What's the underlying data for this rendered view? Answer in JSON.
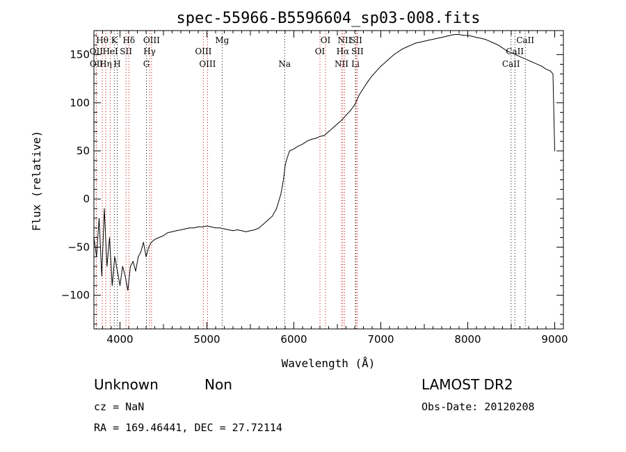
{
  "chart_data": {
    "type": "line",
    "title": "spec-55966-B5596604_sp03-008.fits",
    "xlabel": "Wavelength (Å)",
    "ylabel": "Flux (relative)",
    "xlim": [
      3700,
      9100
    ],
    "ylim": [
      -135,
      175
    ],
    "x_ticks": [
      4000,
      5000,
      6000,
      7000,
      8000,
      9000
    ],
    "y_ticks": [
      -100,
      -50,
      0,
      50,
      100,
      150
    ],
    "grid": false,
    "series": [
      {
        "color": "#000000",
        "x": [
          3700,
          3730,
          3760,
          3790,
          3820,
          3850,
          3880,
          3910,
          3940,
          3970,
          4000,
          4030,
          4060,
          4090,
          4120,
          4150,
          4180,
          4210,
          4240,
          4270,
          4300,
          4330,
          4360,
          4400,
          4450,
          4500,
          4550,
          4600,
          4650,
          4700,
          4750,
          4800,
          4850,
          4900,
          4950,
          5000,
          5050,
          5100,
          5150,
          5200,
          5250,
          5300,
          5350,
          5400,
          5450,
          5500,
          5550,
          5600,
          5650,
          5700,
          5750,
          5800,
          5850,
          5880,
          5900,
          5920,
          5950,
          6000,
          6050,
          6100,
          6150,
          6200,
          6250,
          6300,
          6350,
          6400,
          6450,
          6500,
          6550,
          6600,
          6650,
          6700,
          6750,
          6800,
          6850,
          6900,
          6950,
          7000,
          7050,
          7100,
          7150,
          7200,
          7250,
          7300,
          7350,
          7400,
          7450,
          7500,
          7550,
          7600,
          7650,
          7700,
          7750,
          7800,
          7850,
          7900,
          7950,
          8000,
          8050,
          8100,
          8150,
          8200,
          8250,
          8300,
          8350,
          8400,
          8450,
          8500,
          8550,
          8600,
          8650,
          8700,
          8750,
          8800,
          8850,
          8900,
          8950,
          8980,
          9000
        ],
        "y": [
          -40,
          -60,
          -20,
          -80,
          -10,
          -70,
          -40,
          -90,
          -60,
          -75,
          -90,
          -70,
          -80,
          -95,
          -70,
          -65,
          -75,
          -60,
          -55,
          -45,
          -60,
          -50,
          -45,
          -42,
          -40,
          -38,
          -35,
          -34,
          -33,
          -32,
          -31,
          -30,
          -30,
          -29,
          -29,
          -28,
          -29,
          -30,
          -30,
          -31,
          -32,
          -33,
          -32,
          -33,
          -34,
          -33,
          -32,
          -30,
          -26,
          -22,
          -18,
          -10,
          5,
          20,
          35,
          42,
          50,
          52,
          55,
          57,
          60,
          62,
          63,
          65,
          66,
          70,
          74,
          78,
          82,
          87,
          92,
          98,
          108,
          115,
          122,
          128,
          133,
          138,
          142,
          146,
          150,
          153,
          156,
          158,
          160,
          162,
          163,
          164,
          165,
          166,
          167,
          168,
          169,
          170,
          171,
          171,
          170,
          170,
          169,
          168,
          167,
          166,
          164,
          162,
          160,
          157,
          154,
          152,
          150,
          148,
          146,
          144,
          142,
          140,
          138,
          135,
          133,
          130,
          50
        ]
      }
    ],
    "line_markers": [
      {
        "label": "Hθ",
        "wavelength": 3797,
        "row": 1,
        "color": "#cc0000"
      },
      {
        "label": "OII",
        "wavelength": 3727,
        "row": 2,
        "color": "#cc0000"
      },
      {
        "label": "OII",
        "wavelength": 3729,
        "row": 3,
        "color": "#cc0000"
      },
      {
        "label": "Hη",
        "wavelength": 3835,
        "row": 3,
        "color": "#cc0000"
      },
      {
        "label": "HeI",
        "wavelength": 3889,
        "row": 2,
        "color": "#cc0000"
      },
      {
        "label": "K",
        "wavelength": 3934,
        "row": 1,
        "color": "#000000"
      },
      {
        "label": "H",
        "wavelength": 3968,
        "row": 3,
        "color": "#000000"
      },
      {
        "label": "SII",
        "wavelength": 4069,
        "row": 2,
        "color": "#cc0000"
      },
      {
        "label": "Hδ",
        "wavelength": 4102,
        "row": 1,
        "color": "#cc0000"
      },
      {
        "label": "OIII",
        "wavelength": 4363,
        "row": 1,
        "color": "#cc0000"
      },
      {
        "label": "Hγ",
        "wavelength": 4340,
        "row": 2,
        "color": "#cc0000"
      },
      {
        "label": "G",
        "wavelength": 4304,
        "row": 3,
        "color": "#000000"
      },
      {
        "label": "OIII",
        "wavelength": 4959,
        "row": 2,
        "color": "#cc0000"
      },
      {
        "label": "OIII",
        "wavelength": 5007,
        "row": 3,
        "color": "#cc0000"
      },
      {
        "label": "Mg",
        "wavelength": 5175,
        "row": 1,
        "color": "#000000"
      },
      {
        "label": "Na",
        "wavelength": 5894,
        "row": 3,
        "color": "#000000"
      },
      {
        "label": "OI",
        "wavelength": 6300,
        "row": 2,
        "color": "#cc0000"
      },
      {
        "label": "OI",
        "wavelength": 6364,
        "row": 1,
        "color": "#cc0000"
      },
      {
        "label": "NII",
        "wavelength": 6548,
        "row": 3,
        "color": "#cc0000"
      },
      {
        "label": "Hα",
        "wavelength": 6563,
        "row": 2,
        "color": "#cc0000"
      },
      {
        "label": "NII",
        "wavelength": 6583,
        "row": 1,
        "color": "#cc0000"
      },
      {
        "label": "SII",
        "wavelength": 6716,
        "row": 1,
        "color": "#cc0000"
      },
      {
        "label": "SII",
        "wavelength": 6731,
        "row": 2,
        "color": "#cc0000"
      },
      {
        "label": "Li",
        "wavelength": 6708,
        "row": 3,
        "color": "#000000"
      },
      {
        "label": "CaII",
        "wavelength": 8498,
        "row": 3,
        "color": "#000000"
      },
      {
        "label": "CaII",
        "wavelength": 8542,
        "row": 2,
        "color": "#000000"
      },
      {
        "label": "CaII",
        "wavelength": 8662,
        "row": 1,
        "color": "#000000"
      }
    ]
  },
  "footer": {
    "class_label": "Unknown",
    "subclass_label": "Non",
    "survey": "LAMOST DR2",
    "cz": "cz = NaN",
    "obs_date": "Obs-Date: 20120208",
    "coords": "RA = 169.46441, DEC =  27.72114"
  }
}
